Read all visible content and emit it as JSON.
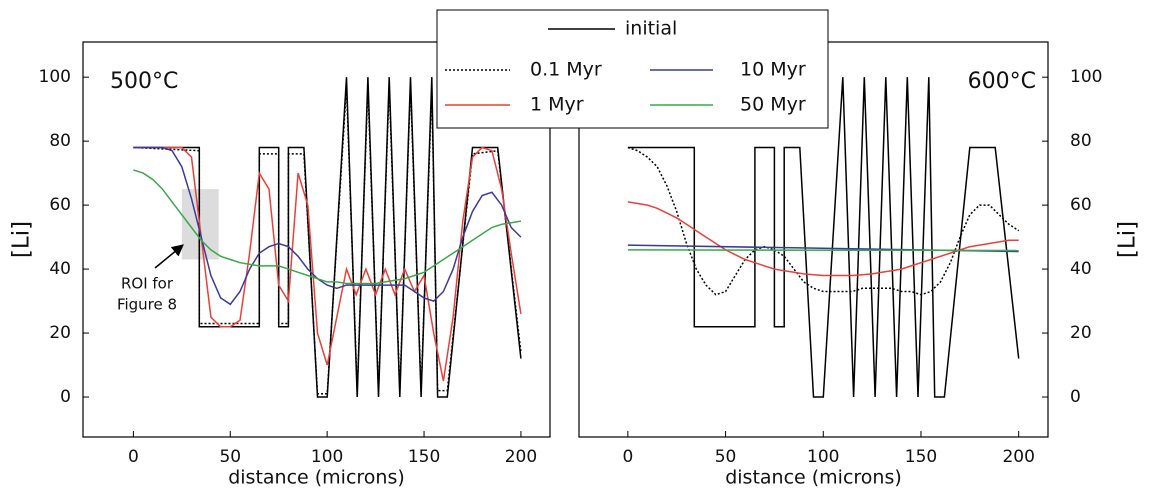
{
  "chart_data": [
    {
      "type": "line",
      "title": "500°C",
      "xlabel": "distance (microns)",
      "ylabel": "[Li]",
      "yaxis_side": "left",
      "xlim": [
        -26,
        215
      ],
      "ylim": [
        -12.5,
        111
      ],
      "xticks": [
        0,
        50,
        100,
        150,
        200
      ],
      "yticks": [
        0,
        20,
        40,
        60,
        80,
        100
      ],
      "legend": "top",
      "annotation": {
        "text": [
          "ROI for",
          "Figure 8"
        ],
        "x": [
          25,
          44
        ],
        "y": [
          43,
          65
        ]
      },
      "series": [
        {
          "name": "initial",
          "color": "#000000",
          "style": "solid",
          "x": [
            0,
            34,
            34,
            65,
            65,
            75,
            75,
            80,
            80,
            88,
            95,
            100,
            110,
            115.5,
            121,
            126.5,
            132,
            137.5,
            143,
            148.5,
            154,
            157,
            162,
            175,
            188,
            200
          ],
          "values": [
            78,
            78,
            22,
            22,
            78,
            78,
            22,
            22,
            78,
            78,
            0,
            0,
            100,
            0,
            100,
            0,
            100,
            0,
            100,
            0,
            100,
            0,
            0,
            78,
            78,
            12
          ]
        },
        {
          "name": "0.1 Myr",
          "color": "#000000",
          "style": "dotted",
          "x": [
            0,
            34,
            34,
            65,
            65,
            75,
            75,
            80,
            80,
            88,
            95,
            100,
            110,
            115.5,
            121,
            126.5,
            132,
            137.5,
            143,
            148.5,
            154,
            157,
            162,
            175,
            188,
            200
          ],
          "values": [
            78,
            77,
            23,
            23,
            76,
            76,
            23,
            23,
            76,
            76,
            1,
            1,
            97,
            2,
            97,
            2,
            97,
            2,
            97,
            2,
            96,
            2,
            2,
            76,
            77,
            14
          ]
        },
        {
          "name": "1 Myr",
          "color": "#e8413a",
          "style": "solid",
          "x": [
            0,
            5,
            10,
            15,
            20,
            25,
            30,
            35,
            40,
            45,
            50,
            55,
            60,
            65,
            70,
            75,
            80,
            85,
            90,
            95,
            100,
            105,
            110,
            115,
            120,
            125,
            130,
            135,
            140,
            145,
            150,
            155,
            160,
            165,
            170,
            175,
            180,
            185,
            190,
            195,
            200
          ],
          "values": [
            78,
            78,
            78,
            78,
            78,
            78,
            75,
            50,
            25,
            22,
            22,
            24,
            45,
            70,
            65,
            35,
            30,
            70,
            60,
            20,
            10,
            25,
            40,
            32,
            40,
            32,
            40,
            32,
            40,
            33,
            38,
            20,
            5,
            25,
            55,
            75,
            78,
            77,
            65,
            45,
            26
          ]
        },
        {
          "name": "10 Myr",
          "color": "#3a3a9a",
          "style": "solid",
          "x": [
            0,
            5,
            10,
            15,
            20,
            25,
            30,
            35,
            40,
            45,
            50,
            55,
            60,
            65,
            70,
            75,
            80,
            85,
            90,
            95,
            100,
            105,
            110,
            115,
            120,
            125,
            130,
            135,
            140,
            145,
            150,
            155,
            160,
            165,
            170,
            175,
            180,
            185,
            190,
            195,
            200
          ],
          "values": [
            78,
            78,
            78,
            78,
            77,
            72,
            62,
            50,
            38,
            31,
            29,
            33,
            40,
            45,
            47,
            48,
            47,
            44,
            40,
            37,
            35,
            34,
            35,
            35,
            35,
            35,
            35,
            35,
            35,
            33,
            31,
            30,
            33,
            40,
            50,
            58,
            63,
            64,
            60,
            53,
            50
          ]
        },
        {
          "name": "50 Myr",
          "color": "#3aa84a",
          "style": "solid",
          "x": [
            0,
            5,
            10,
            15,
            20,
            25,
            30,
            35,
            40,
            45,
            50,
            55,
            60,
            65,
            70,
            75,
            80,
            85,
            90,
            95,
            100,
            105,
            110,
            115,
            120,
            125,
            130,
            135,
            140,
            145,
            150,
            155,
            160,
            165,
            170,
            175,
            180,
            185,
            190,
            195,
            200
          ],
          "values": [
            71,
            70,
            68,
            65,
            61,
            57,
            53,
            49,
            46,
            44,
            43,
            42,
            41.5,
            41,
            41,
            41,
            40,
            39,
            38,
            37,
            36,
            36,
            35.5,
            35.5,
            35.5,
            35.5,
            36,
            36.5,
            37,
            38,
            39,
            41,
            43,
            45,
            47,
            49,
            51,
            53,
            54,
            54.5,
            55
          ]
        }
      ]
    },
    {
      "type": "line",
      "title": "600°C",
      "xlabel": "distance (microns)",
      "ylabel": "[Li]",
      "yaxis_side": "right",
      "xlim": [
        -25,
        215
      ],
      "ylim": [
        -12.5,
        111
      ],
      "xticks": [
        0,
        50,
        100,
        150,
        200
      ],
      "yticks": [
        0,
        20,
        40,
        60,
        80,
        100
      ],
      "series": [
        {
          "color": "#000000",
          "style": "solid",
          "x": [
            0,
            34,
            34,
            65,
            65,
            75,
            75,
            80,
            80,
            88,
            95,
            100,
            110,
            115.5,
            121,
            126.5,
            132,
            137.5,
            143,
            148.5,
            154,
            157,
            162,
            175,
            188,
            200
          ],
          "values": [
            78,
            78,
            22,
            22,
            78,
            78,
            22,
            22,
            78,
            78,
            0,
            0,
            100,
            0,
            100,
            0,
            100,
            0,
            100,
            0,
            100,
            0,
            0,
            78,
            78,
            12
          ]
        },
        {
          "color": "#000000",
          "style": "dotted",
          "x": [
            0,
            5,
            10,
            15,
            20,
            25,
            30,
            35,
            40,
            45,
            50,
            55,
            60,
            65,
            70,
            75,
            80,
            85,
            90,
            95,
            100,
            105,
            110,
            115,
            120,
            125,
            130,
            135,
            140,
            145,
            150,
            155,
            160,
            165,
            170,
            175,
            180,
            185,
            190,
            195,
            200
          ],
          "values": [
            78,
            77,
            75,
            72,
            66,
            58,
            48,
            40,
            35,
            32,
            33,
            38,
            43,
            46,
            47,
            46,
            44,
            40,
            36,
            34,
            33,
            33,
            33,
            33,
            34,
            34,
            34,
            34,
            33,
            33,
            32,
            33,
            36,
            42,
            50,
            57,
            60,
            60,
            57,
            54,
            52
          ]
        },
        {
          "color": "#e8413a",
          "style": "solid",
          "x": [
            0,
            5,
            10,
            15,
            20,
            25,
            30,
            35,
            40,
            45,
            50,
            55,
            60,
            65,
            70,
            75,
            80,
            85,
            90,
            95,
            100,
            105,
            110,
            115,
            120,
            125,
            130,
            135,
            140,
            145,
            150,
            155,
            160,
            165,
            170,
            175,
            180,
            185,
            190,
            195,
            200
          ],
          "values": [
            61,
            60.5,
            60,
            59,
            57.5,
            56,
            54,
            52,
            50,
            48,
            46,
            44.5,
            43,
            42,
            41,
            40,
            39.5,
            39,
            38.5,
            38.2,
            38,
            38,
            38,
            38,
            38.2,
            38.5,
            39,
            39.5,
            40,
            41,
            42,
            43,
            44,
            45,
            46,
            47,
            47.5,
            48,
            48.5,
            49,
            49
          ]
        },
        {
          "color": "#3a3a9a",
          "style": "solid",
          "x": [
            0,
            200
          ],
          "values": [
            47.5,
            45.5
          ]
        },
        {
          "color": "#3aa84a",
          "style": "solid",
          "x": [
            0,
            200
          ],
          "values": [
            46,
            45.8
          ]
        }
      ]
    }
  ]
}
